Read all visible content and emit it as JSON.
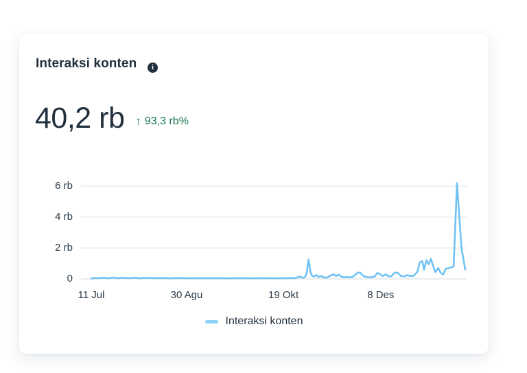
{
  "card": {
    "title": "Interaksi konten",
    "info_icon_glyph": "i",
    "metric": {
      "value": "40,2 rb",
      "delta_arrow": "↑",
      "delta_text": "93,3 rb%"
    },
    "legend": {
      "label": "Interaksi konten"
    }
  },
  "colors": {
    "text_dark": "#22303e",
    "delta_green": "#1a7b4d",
    "line_blue": "#70c2f3",
    "legend_blue": "#8fd2f7",
    "gridline": "#e9ebed",
    "baseline": "#e2e5e8",
    "card_bg": "#ffffff"
  },
  "chart_data": {
    "type": "line",
    "title": "Interaksi konten",
    "xlabel": "",
    "ylabel": "",
    "unit": "rb",
    "grid": true,
    "legend_position": "bottom",
    "ylim": [
      0,
      6.7
    ],
    "y_ticks": [
      {
        "value": 0,
        "label": "0"
      },
      {
        "value": 2,
        "label": "2 rb"
      },
      {
        "value": 4,
        "label": "4 rb"
      },
      {
        "value": 6,
        "label": "6 rb"
      }
    ],
    "x_ticks": [
      {
        "f": 0.0,
        "label": "11 Jul"
      },
      {
        "f": 0.255,
        "label": "30 Agu"
      },
      {
        "f": 0.514,
        "label": "19 Okt"
      },
      {
        "f": 0.774,
        "label": "8 Des"
      }
    ],
    "series": [
      {
        "name": "Interaksi konten",
        "color": "#70c2f3",
        "points": [
          [
            0.0,
            0.03
          ],
          [
            0.01,
            0.06
          ],
          [
            0.02,
            0.04
          ],
          [
            0.03,
            0.08
          ],
          [
            0.045,
            0.04
          ],
          [
            0.06,
            0.09
          ],
          [
            0.07,
            0.05
          ],
          [
            0.085,
            0.08
          ],
          [
            0.1,
            0.05
          ],
          [
            0.115,
            0.08
          ],
          [
            0.13,
            0.04
          ],
          [
            0.15,
            0.07
          ],
          [
            0.17,
            0.05
          ],
          [
            0.19,
            0.06
          ],
          [
            0.21,
            0.04
          ],
          [
            0.23,
            0.06
          ],
          [
            0.25,
            0.05
          ],
          [
            0.27,
            0.04
          ],
          [
            0.29,
            0.05
          ],
          [
            0.31,
            0.04
          ],
          [
            0.34,
            0.05
          ],
          [
            0.37,
            0.04
          ],
          [
            0.4,
            0.05
          ],
          [
            0.43,
            0.04
          ],
          [
            0.46,
            0.05
          ],
          [
            0.49,
            0.04
          ],
          [
            0.52,
            0.05
          ],
          [
            0.545,
            0.06
          ],
          [
            0.558,
            0.15
          ],
          [
            0.565,
            0.07
          ],
          [
            0.572,
            0.12
          ],
          [
            0.576,
            0.35
          ],
          [
            0.581,
            1.25
          ],
          [
            0.586,
            0.45
          ],
          [
            0.59,
            0.2
          ],
          [
            0.596,
            0.15
          ],
          [
            0.602,
            0.25
          ],
          [
            0.608,
            0.12
          ],
          [
            0.615,
            0.18
          ],
          [
            0.622,
            0.1
          ],
          [
            0.63,
            0.08
          ],
          [
            0.64,
            0.22
          ],
          [
            0.648,
            0.3
          ],
          [
            0.655,
            0.18
          ],
          [
            0.662,
            0.28
          ],
          [
            0.668,
            0.15
          ],
          [
            0.676,
            0.1
          ],
          [
            0.684,
            0.12
          ],
          [
            0.692,
            0.1
          ],
          [
            0.7,
            0.14
          ],
          [
            0.706,
            0.28
          ],
          [
            0.714,
            0.42
          ],
          [
            0.72,
            0.38
          ],
          [
            0.727,
            0.2
          ],
          [
            0.735,
            0.12
          ],
          [
            0.742,
            0.1
          ],
          [
            0.75,
            0.12
          ],
          [
            0.758,
            0.15
          ],
          [
            0.765,
            0.38
          ],
          [
            0.772,
            0.32
          ],
          [
            0.78,
            0.18
          ],
          [
            0.788,
            0.3
          ],
          [
            0.795,
            0.15
          ],
          [
            0.803,
            0.18
          ],
          [
            0.812,
            0.42
          ],
          [
            0.82,
            0.38
          ],
          [
            0.828,
            0.18
          ],
          [
            0.836,
            0.15
          ],
          [
            0.845,
            0.25
          ],
          [
            0.853,
            0.18
          ],
          [
            0.862,
            0.2
          ],
          [
            0.872,
            0.45
          ],
          [
            0.878,
            1.05
          ],
          [
            0.885,
            1.15
          ],
          [
            0.89,
            0.6
          ],
          [
            0.896,
            1.2
          ],
          [
            0.902,
            0.95
          ],
          [
            0.908,
            1.3
          ],
          [
            0.914,
            0.85
          ],
          [
            0.92,
            0.45
          ],
          [
            0.928,
            0.7
          ],
          [
            0.934,
            0.4
          ],
          [
            0.941,
            0.28
          ],
          [
            0.948,
            0.65
          ],
          [
            0.956,
            0.7
          ],
          [
            0.963,
            0.75
          ],
          [
            0.969,
            0.8
          ],
          [
            0.978,
            6.2
          ],
          [
            0.99,
            2.0
          ],
          [
            1.0,
            0.6
          ]
        ]
      }
    ]
  }
}
